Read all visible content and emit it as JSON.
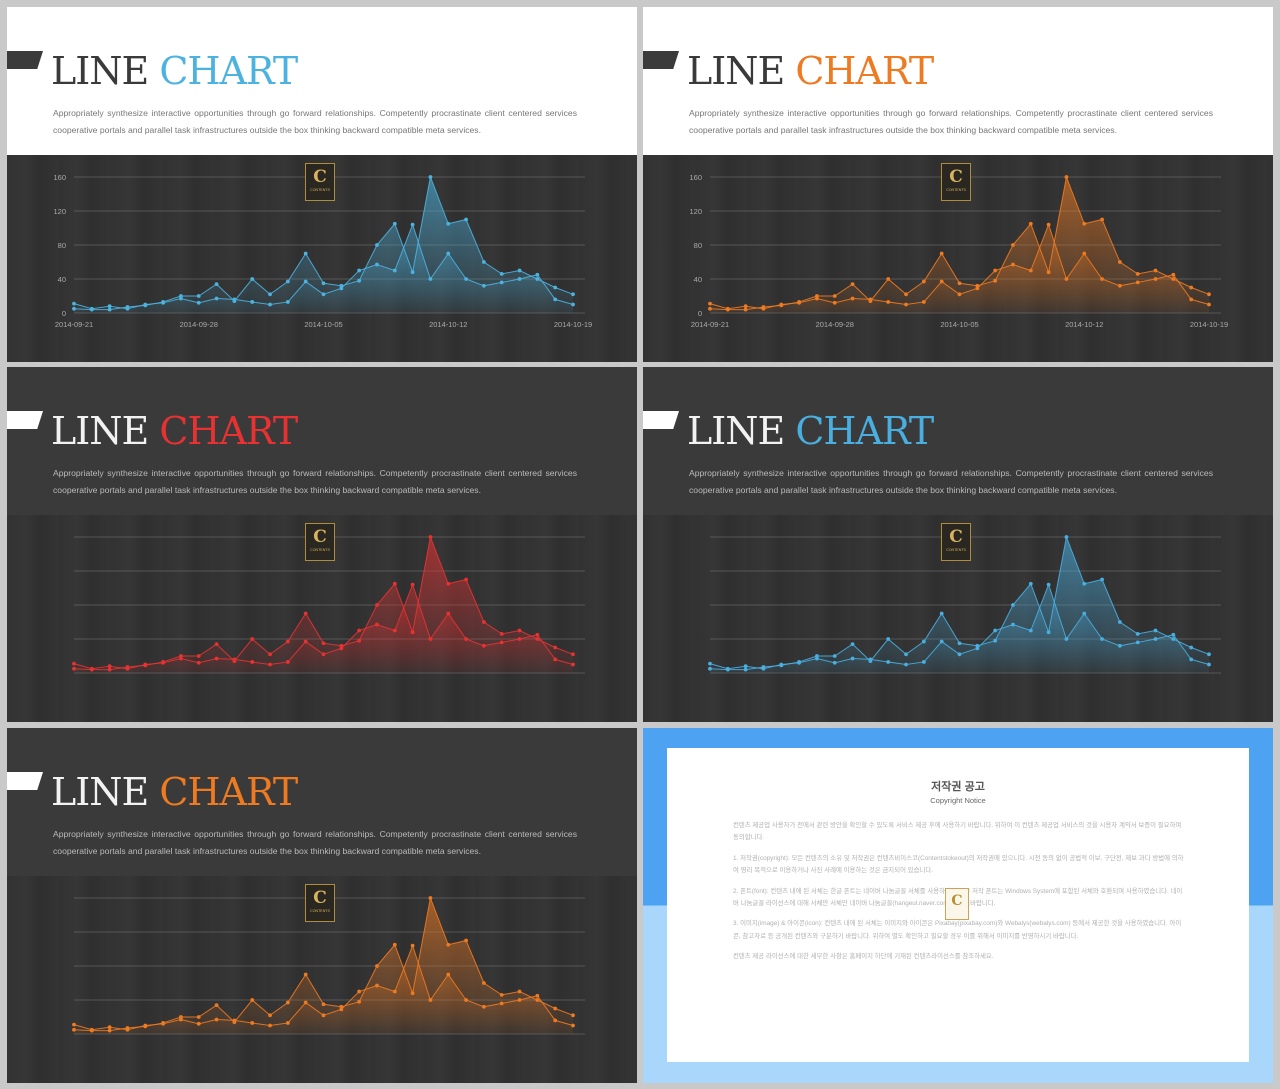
{
  "slides": [
    {
      "theme": "light",
      "accent": "#4cb3e0",
      "title_plain": "LINE",
      "title_accent": "CHART",
      "show_axes": true
    },
    {
      "theme": "light",
      "accent": "#ee7a21",
      "title_plain": "LINE",
      "title_accent": "CHART",
      "show_axes": true
    },
    {
      "theme": "dark",
      "accent": "#e83232",
      "title_plain": "LINE",
      "title_accent": "CHART",
      "show_axes": false
    },
    {
      "theme": "dark",
      "accent": "#49aee0",
      "title_plain": "LINE",
      "title_accent": "CHART",
      "show_axes": false
    },
    {
      "theme": "dark",
      "accent": "#ee7a21",
      "title_plain": "LINE",
      "title_accent": "CHART",
      "show_axes": false
    }
  ],
  "description": "Appropriately synthesize interactive opportunities through go forward relationships. Competently procrastinate client centered services cooperative portals and parallel task infrastructures outside the box thinking backward compatible meta services.",
  "logo": {
    "letter": "C",
    "sub": "CONTENTS"
  },
  "chart_data": {
    "type": "area",
    "x_ticks": [
      "2014-09-21",
      "2014-09-28",
      "2014-10-05",
      "2014-10-12",
      "2014-10-19"
    ],
    "y_ticks": [
      0,
      40,
      80,
      120,
      160
    ],
    "ylim": [
      0,
      160
    ],
    "n_points": 29,
    "series": [
      {
        "values": [
          5,
          4,
          4,
          7,
          9,
          13,
          20,
          20,
          34,
          14,
          40,
          22,
          37,
          70,
          35,
          32,
          38,
          80,
          105,
          48,
          160,
          105,
          110,
          60,
          46,
          50,
          40,
          30,
          22
        ]
      },
      {
        "values": [
          11,
          5,
          8,
          5,
          10,
          12,
          17,
          12,
          17,
          16,
          13,
          10,
          13,
          37,
          22,
          29,
          50,
          57,
          50,
          104,
          40,
          70,
          40,
          32,
          36,
          40,
          45,
          16,
          10
        ]
      }
    ]
  },
  "notice": {
    "title": "저작권 공고",
    "subtitle": "Copyright Notice",
    "paragraphs": [
      "컨텐츠 제공업 사용자가 전에서 관련 방안을 확인할 수 있도록 서비스 제공 후에 사용하기 바랍니다. 위하여 이 컨텐츠 제공업 서비스의 것을 시용자 계약서 보증이 필요하며 동의합니다.",
      "1. 저작권(copyright): 모든 컨텐츠의 소유 및 저작권은 컨텐츠비이스코(Contentstokeout)의 저작권에 있으니다. 시전 동의 없이 공법적 이보, 구단전, 제보 과다 방법에 의하여 영리 목적으로 이용하거나 사진 사례에 이용하는 것은 금지되어 있습니다.",
      "2. 폰트(font): 컨텐츠 내에 된 서체는 한글 폰트는 네이버 나눔글꼴 서체를 사용하며 윈도우 저작 폰트는 Windows System에 포함된 서체와 호환되며 사용하였습니다. 네이버 나눔글꼴 라이선스에 대해 서체만 서체만 네이버 나눔글꼴(hangeul.naver.com)을 참조바랍니다.",
      "3. 이미지(image) & 아이콘(icon): 컨텐츠 내에 된 서체는 이미지와 아이콘은 Pixabay(pixabay.com)와 Webalys(webalys.com) 등에서 제공한 것을 사용하였습니다. 아이콘, 참고자료 등 공개된 컨텐츠와 구분하기 바랍니다. 위하여 별도 확인하고 필요할 경우 이를 위해서 이미지를 반영하시기 바랍니다.",
      "컨텐츠 제공 라이선스에 대한 세부한 사항은 홈페이지 하단에 기재된 컨텐츠라이선스를 참조하세요."
    ]
  }
}
